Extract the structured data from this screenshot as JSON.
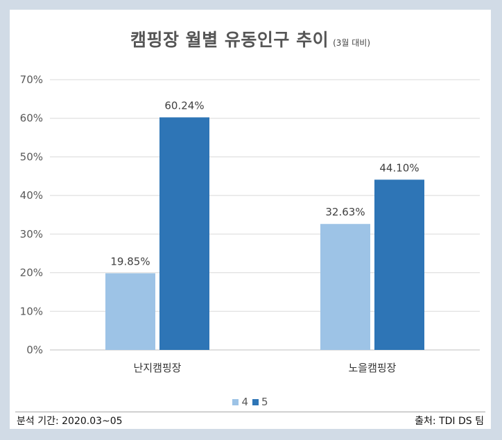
{
  "chart_data": {
    "type": "bar",
    "title": "캠핑장 월별 유동인구 추이",
    "subtitle": "(3월 대비)",
    "categories": [
      "난지캠핑장",
      "노을캠핑장"
    ],
    "series": [
      {
        "name": "4",
        "values": [
          19.85,
          32.63
        ],
        "labels": [
          "19.85%",
          "32.63%"
        ],
        "color": "#9dc3e6"
      },
      {
        "name": "5",
        "values": [
          60.24,
          44.1
        ],
        "labels": [
          "60.24%",
          "44.10%"
        ],
        "color": "#2e75b6"
      }
    ],
    "ylim": [
      0,
      70
    ],
    "y_ticks": [
      "0%",
      "10%",
      "20%",
      "30%",
      "40%",
      "50%",
      "60%",
      "70%"
    ],
    "grid": true,
    "legend_position": "bottom"
  },
  "footer": {
    "left": "분석 기간: 2020.03~05",
    "right": "출처: TDI DS 팀"
  }
}
